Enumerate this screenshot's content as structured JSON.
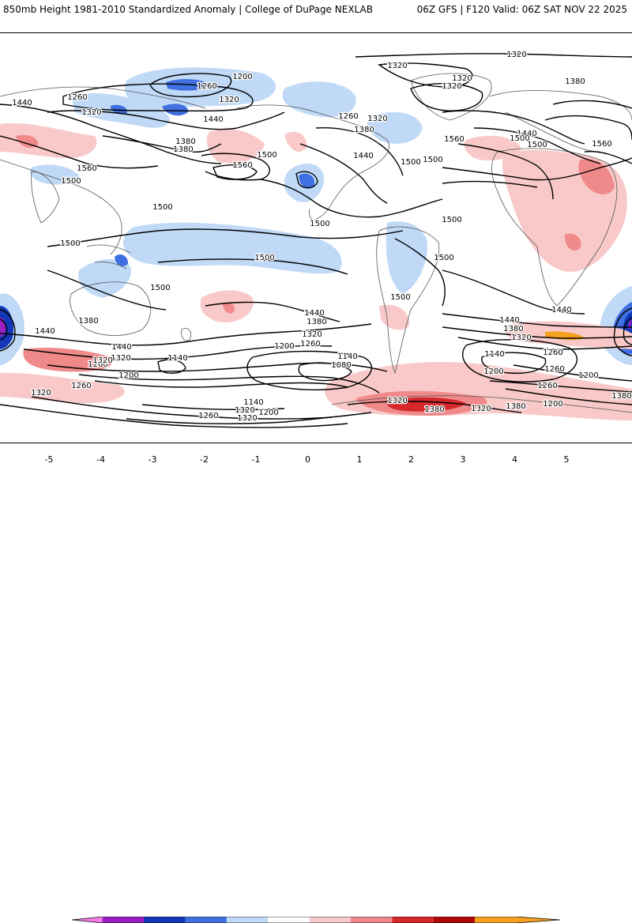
{
  "header": {
    "left_title": "850mb Height 1981-2010 Standardized Anomaly | College of DuPage NEXLAB",
    "right_title": "06Z GFS | F120 Valid: 06Z SAT NOV 22 2025"
  },
  "legend": {
    "ticks": [
      "-5",
      "-4",
      "-3",
      "-2",
      "-1",
      "0",
      "1",
      "2",
      "3",
      "4",
      "5"
    ],
    "colors": [
      "#f07ee6",
      "#9c1fc4",
      "#1238b8",
      "#3f6fe0",
      "#bfd9f7",
      "#ffffff",
      "#f9c9c9",
      "#f08a8a",
      "#d6282a",
      "#b00808",
      "#f6a020"
    ]
  },
  "contour_labels": [
    {
      "text": "1320"
    },
    {
      "text": "1320"
    },
    {
      "text": "1320"
    },
    {
      "text": "1320"
    },
    {
      "text": "1380"
    },
    {
      "text": "1200"
    },
    {
      "text": "1260"
    },
    {
      "text": "1320"
    },
    {
      "text": "1260"
    },
    {
      "text": "1440"
    },
    {
      "text": "1320"
    },
    {
      "text": "1380"
    },
    {
      "text": "1260"
    },
    {
      "text": "1320"
    },
    {
      "text": "1380"
    },
    {
      "text": "1440"
    },
    {
      "text": "1500"
    },
    {
      "text": "1560"
    },
    {
      "text": "1440"
    },
    {
      "text": "1560"
    },
    {
      "text": "1500"
    },
    {
      "text": "1380"
    },
    {
      "text": "1560"
    },
    {
      "text": "1500"
    },
    {
      "text": "1440"
    },
    {
      "text": "1500"
    },
    {
      "text": "1560"
    },
    {
      "text": "1500"
    },
    {
      "text": "1500"
    },
    {
      "text": "1500"
    },
    {
      "text": "1500"
    },
    {
      "text": "1500"
    },
    {
      "text": "1500"
    },
    {
      "text": "1500"
    },
    {
      "text": "1500"
    },
    {
      "text": "1500"
    },
    {
      "text": "1500"
    },
    {
      "text": "1440"
    },
    {
      "text": "1380"
    },
    {
      "text": "1320"
    },
    {
      "text": "1260"
    },
    {
      "text": "1200"
    },
    {
      "text": "1140"
    },
    {
      "text": "1080"
    },
    {
      "text": "1440"
    },
    {
      "text": "1380"
    },
    {
      "text": "1320"
    },
    {
      "text": "1260"
    },
    {
      "text": "1200"
    },
    {
      "text": "1140"
    },
    {
      "text": "1380"
    },
    {
      "text": "1440"
    },
    {
      "text": "1440"
    },
    {
      "text": "1320"
    },
    {
      "text": "1260"
    },
    {
      "text": "1200"
    },
    {
      "text": "1320"
    },
    {
      "text": "1260"
    },
    {
      "text": "1320"
    },
    {
      "text": "1200"
    },
    {
      "text": "1140"
    },
    {
      "text": "1260"
    },
    {
      "text": "1320"
    },
    {
      "text": "1440"
    },
    {
      "text": "1380"
    },
    {
      "text": "1320"
    },
    {
      "text": "1260"
    },
    {
      "text": "1200"
    },
    {
      "text": "1260"
    },
    {
      "text": "1320"
    },
    {
      "text": "1380"
    },
    {
      "text": "1380"
    },
    {
      "text": "1200"
    },
    {
      "text": "1140"
    },
    {
      "text": "1320"
    }
  ]
}
